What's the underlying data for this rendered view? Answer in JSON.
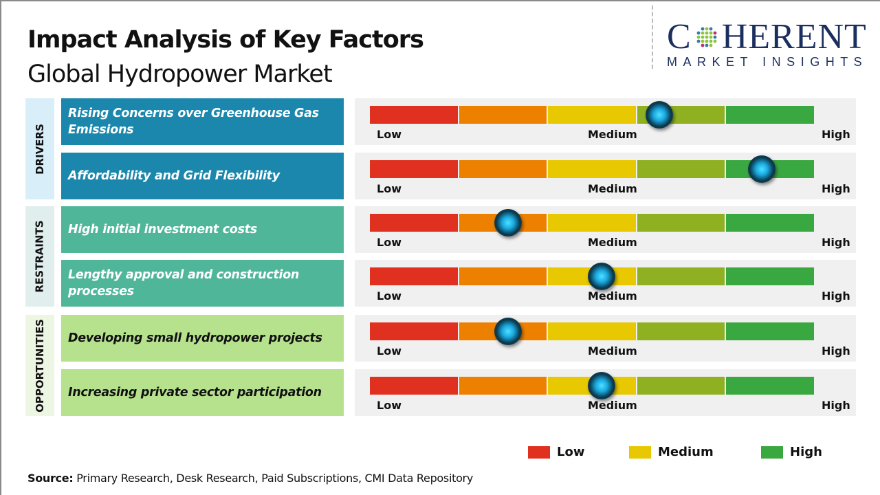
{
  "header": {
    "title": "Impact Analysis of Key Factors",
    "subtitle": "Global Hydropower Market"
  },
  "logo": {
    "line1_a": "C",
    "line1_b": "HERENT",
    "line2": "MARKET INSIGHTS"
  },
  "colors": {
    "scale": [
      "#e03020",
      "#ee8000",
      "#e8c800",
      "#8fb020",
      "#3aa840"
    ],
    "drivers": "#1b87ac",
    "restraints": "#4fb69a",
    "opportunities": "#b6e28e"
  },
  "chart_data": {
    "type": "table",
    "title": "Impact Analysis of Key Factors - Global Hydropower Market",
    "scale_labels": {
      "low": "Low",
      "medium": "Medium",
      "high": "High"
    },
    "categories": [
      {
        "name": "DRIVERS",
        "factors": [
          {
            "label": "Rising Concerns over Greenhouse Gas Emissions",
            "impact": 0.65
          },
          {
            "label": "Affordability and Grid Flexibility",
            "impact": 0.88
          }
        ]
      },
      {
        "name": "RESTRAINTS",
        "factors": [
          {
            "label": "High initial investment costs",
            "impact": 0.31
          },
          {
            "label": "Lengthy approval and construction processes",
            "impact": 0.52
          }
        ]
      },
      {
        "name": "OPPORTUNITIES",
        "factors": [
          {
            "label": "Developing small hydropower projects",
            "impact": 0.31
          },
          {
            "label": "Increasing private sector participation",
            "impact": 0.52
          }
        ]
      }
    ],
    "legend": [
      {
        "label": "Low",
        "color": "#e03020"
      },
      {
        "label": "Medium",
        "color": "#e8c800"
      },
      {
        "label": "High",
        "color": "#3aa840"
      }
    ]
  },
  "footer": {
    "source_label": "Source:",
    "source_text": " Primary Research, Desk Research, Paid Subscriptions, CMI Data Repository"
  }
}
